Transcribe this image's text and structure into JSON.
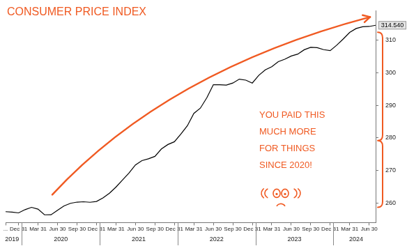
{
  "chart_data": {
    "type": "line",
    "title": "CONSUMER PRICE INDEX",
    "annotation": [
      "YOU PAID THIS",
      "MUCH MORE",
      "FOR THINGS",
      "SINCE 2020!"
    ],
    "categories": [
      "...",
      null,
      "Dec 31",
      null,
      null,
      "Mar 31",
      null,
      null,
      "Jun 30",
      null,
      null,
      "Sep 30",
      null,
      null,
      "Dec 31",
      null,
      null,
      "Mar 31",
      null,
      null,
      "Jun 30",
      null,
      null,
      "Sep 30",
      null,
      null,
      "Dec 31",
      null,
      null,
      "Mar 31",
      null,
      null,
      "Jun 30",
      null,
      null,
      "Sep 30",
      null,
      null,
      "Dec 31",
      null,
      null,
      "Mar 31",
      null,
      null,
      "Jun 30",
      null,
      null,
      "Sep 30",
      null,
      null,
      "Dec 31",
      null,
      null,
      "Mar 31",
      null,
      null,
      "Jun 30",
      null
    ],
    "category_groups": [
      {
        "label": "2019",
        "count": 3
      },
      {
        "label": "2020",
        "count": 12
      },
      {
        "label": "2021",
        "count": 12
      },
      {
        "label": "2022",
        "count": 12
      },
      {
        "label": "2023",
        "count": 12
      },
      {
        "label": "2024",
        "count": 7
      }
    ],
    "values": [
      257.346,
      257.208,
      256.974,
      257.971,
      258.678,
      258.115,
      256.389,
      256.394,
      257.797,
      259.101,
      259.918,
      260.28,
      260.388,
      260.229,
      260.474,
      261.582,
      263.014,
      264.877,
      267.054,
      269.195,
      271.696,
      273.003,
      273.567,
      274.31,
      276.589,
      277.948,
      278.802,
      281.148,
      283.716,
      287.504,
      289.109,
      292.296,
      296.311,
      296.276,
      296.171,
      296.808,
      298.012,
      297.711,
      296.797,
      299.17,
      300.84,
      301.836,
      303.363,
      304.127,
      305.109,
      305.691,
      307.026,
      307.789,
      307.671,
      307.051,
      306.746,
      308.417,
      310.326,
      312.332,
      313.548,
      314.069,
      314.175,
      314.54
    ],
    "value_labels": [
      null,
      null,
      null,
      null,
      null,
      null,
      null,
      null,
      null,
      null,
      null,
      null,
      null,
      null,
      null,
      null,
      null,
      null,
      null,
      null,
      null,
      null,
      null,
      null,
      null,
      null,
      null,
      null,
      null,
      null,
      null,
      null,
      null,
      null,
      null,
      null,
      null,
      null,
      null,
      null,
      null,
      null,
      null,
      null,
      null,
      null,
      null,
      null,
      null,
      null,
      null,
      null,
      null,
      null,
      null,
      null,
      null,
      "314.540"
    ],
    "color": "#000000",
    "ylim": [
      254,
      319
    ],
    "yticks": [
      260,
      270,
      280,
      290,
      300,
      310
    ],
    "grid": false
  }
}
